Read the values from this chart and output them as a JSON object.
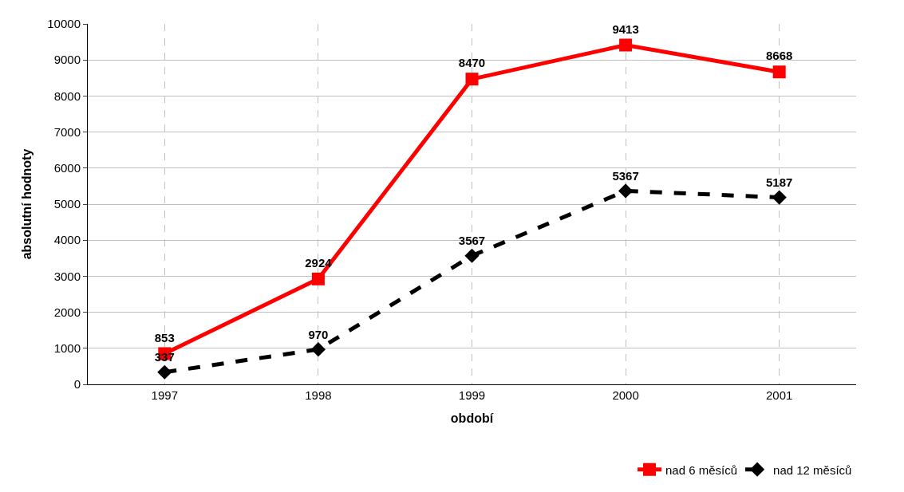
{
  "chart_data": {
    "type": "line",
    "xlabel": "období",
    "ylabel": "absolutní hodnoty",
    "categories": [
      "1997",
      "1998",
      "1999",
      "2000",
      "2001"
    ],
    "series": [
      {
        "name": "nad 6 měsíců",
        "color": "#ff0000",
        "values": [
          853,
          2924,
          8470,
          9413,
          8668
        ],
        "marker": "square",
        "line_style": "solid"
      },
      {
        "name": "nad 12 měsíců",
        "color": "#000000",
        "values": [
          337,
          970,
          3567,
          5367,
          5187
        ],
        "marker": "diamond",
        "line_style": "dashed"
      }
    ],
    "ylim": [
      0,
      10000
    ],
    "yticks": [
      0,
      1000,
      2000,
      3000,
      4000,
      5000,
      6000,
      7000,
      8000,
      9000,
      10000
    ],
    "grid": true,
    "legend": "bottom right",
    "data_labels": true
  }
}
